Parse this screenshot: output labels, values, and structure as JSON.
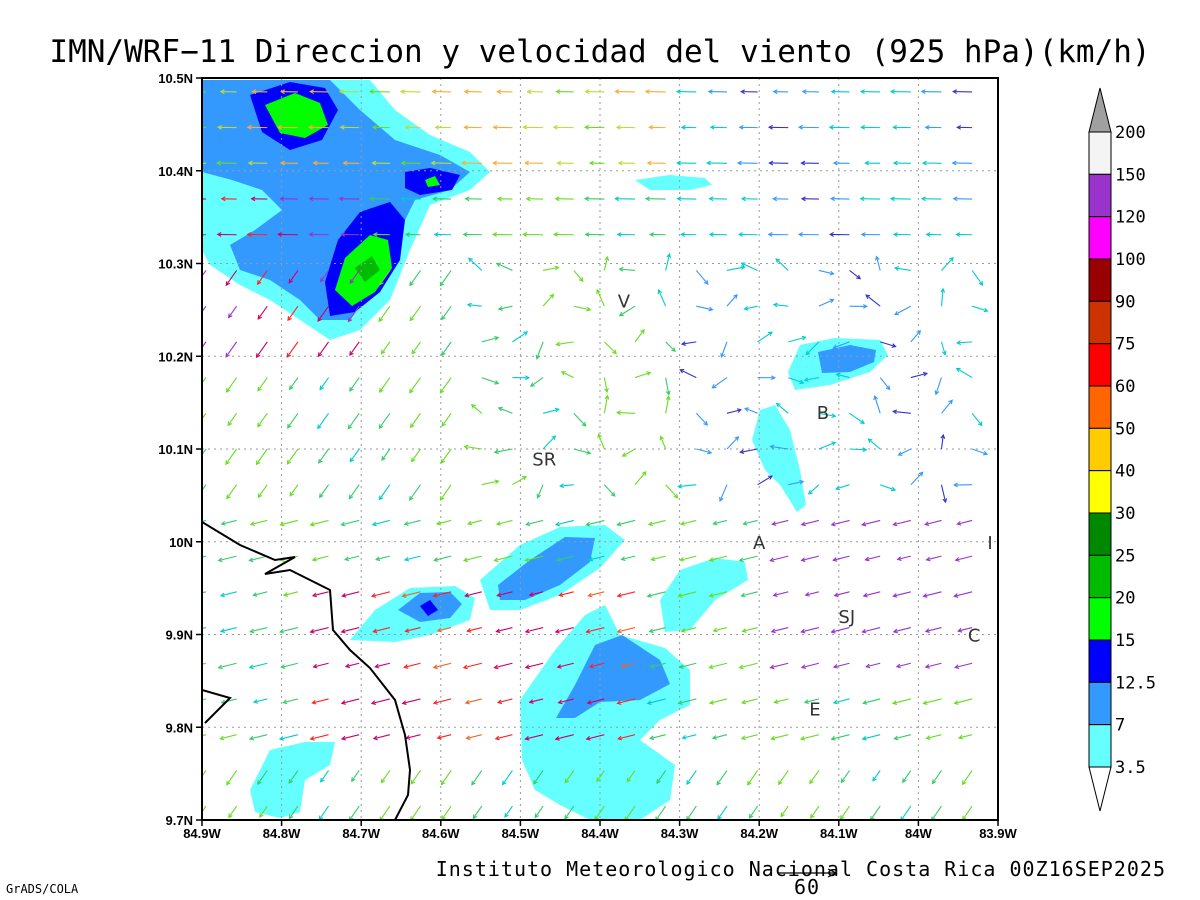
{
  "title": "IMN/WRF−11 Direccion y velocidad del viento (925 hPa)(km/h)",
  "footer": "Instituto Meteorologico Nacional Costa Rica 00Z16SEP2025",
  "credit": "GrADS/COLA",
  "reference_vector": {
    "label": "60"
  },
  "map": {
    "lon_range": [
      -84.9,
      -83.9
    ],
    "lat_range": [
      9.7,
      10.5
    ],
    "lon_labels": [
      "84.9W",
      "84.8W",
      "84.7W",
      "84.6W",
      "84.5W",
      "84.4W",
      "84.3W",
      "84.2W",
      "84.1W",
      "84W",
      "83.9W"
    ],
    "lat_labels": [
      "9.7N",
      "9.8N",
      "9.9N",
      "10N",
      "10.1N",
      "10.2N",
      "10.3N",
      "10.4N",
      "10.5N"
    ],
    "places": [
      {
        "label": "V",
        "lon": -84.37,
        "lat": 10.26
      },
      {
        "label": "SR",
        "lon": -84.47,
        "lat": 10.09
      },
      {
        "label": "B",
        "lon": -84.12,
        "lat": 10.14
      },
      {
        "label": "A",
        "lon": -84.2,
        "lat": 10.0
      },
      {
        "label": "I",
        "lon": -83.91,
        "lat": 10.0
      },
      {
        "label": "SJ",
        "lon": -84.09,
        "lat": 9.92
      },
      {
        "label": "C",
        "lon": -83.93,
        "lat": 9.9
      },
      {
        "label": "E",
        "lon": -84.13,
        "lat": 9.82
      }
    ]
  },
  "colorbar": {
    "levels": [
      "200",
      "150",
      "120",
      "100",
      "90",
      "75",
      "60",
      "50",
      "40",
      "30",
      "25",
      "20",
      "15",
      "12.5",
      "7",
      "3.5"
    ],
    "colors": [
      "#a0a0a0",
      "#f4f4f4",
      "#9933cc",
      "#ff00ff",
      "#990000",
      "#cc3300",
      "#ff0000",
      "#ff6600",
      "#ffcc00",
      "#ffff00",
      "#008800",
      "#00bb00",
      "#00ff00",
      "#0000ff",
      "#3399ff",
      "#66ffff",
      "#ffffff"
    ]
  }
}
